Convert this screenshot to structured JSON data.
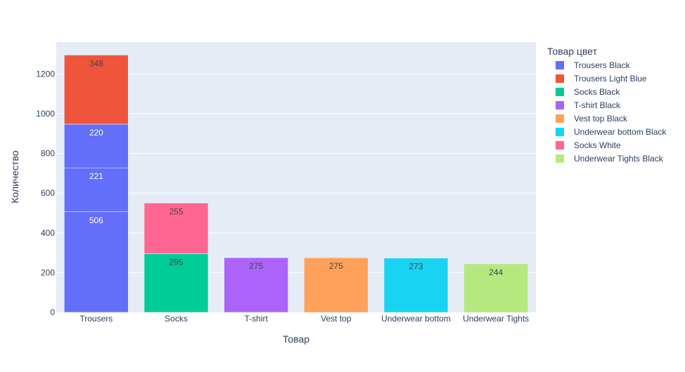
{
  "chart_data": {
    "type": "bar",
    "barmode": "stack",
    "xlabel": "Товар",
    "ylabel": "Количество",
    "categories": [
      "Trousers",
      "Socks",
      "T-shirt",
      "Vest top",
      "Underwear bottom",
      "Underwear Tights"
    ],
    "ylim": [
      0,
      1360
    ],
    "yticks": [
      0,
      200,
      400,
      600,
      800,
      1000,
      1200
    ],
    "grid": true,
    "legend": {
      "title": "Товар цвет",
      "placement": "right",
      "items": [
        {
          "name": "Trousers Black",
          "color": "#636efa"
        },
        {
          "name": "Trousers Light Blue",
          "color": "#ef553b"
        },
        {
          "name": "Socks Black",
          "color": "#00cc96"
        },
        {
          "name": "T-shirt Black",
          "color": "#ab63fa"
        },
        {
          "name": "Vest top Black",
          "color": "#ffa15a"
        },
        {
          "name": "Underwear bottom Black",
          "color": "#19d3f3"
        },
        {
          "name": "Socks White",
          "color": "#ff6692"
        },
        {
          "name": "Underwear Tights Black",
          "color": "#b6e880"
        }
      ]
    },
    "segments": [
      {
        "category": "Trousers",
        "series": "Trousers Black",
        "value": 506,
        "label": "506",
        "color": "#636efa",
        "label_color": "#ffffff"
      },
      {
        "category": "Trousers",
        "series": "Trousers Black",
        "value": 221,
        "label": "221",
        "color": "#636efa",
        "label_color": "#ffffff"
      },
      {
        "category": "Trousers",
        "series": "Trousers Black",
        "value": 220,
        "label": "220",
        "color": "#636efa",
        "label_color": "#ffffff"
      },
      {
        "category": "Trousers",
        "series": "Trousers Light Blue",
        "value": 348,
        "label": "348",
        "color": "#ef553b",
        "label_color": "#444444"
      },
      {
        "category": "Socks",
        "series": "Socks Black",
        "value": 295,
        "label": "295",
        "color": "#00cc96",
        "label_color": "#444444"
      },
      {
        "category": "Socks",
        "series": "Socks White",
        "value": 255,
        "label": "255",
        "color": "#ff6692",
        "label_color": "#444444"
      },
      {
        "category": "T-shirt",
        "series": "T-shirt Black",
        "value": 275,
        "label": "275",
        "color": "#ab63fa",
        "label_color": "#444444"
      },
      {
        "category": "Vest top",
        "series": "Vest top Black",
        "value": 275,
        "label": "275",
        "color": "#ffa15a",
        "label_color": "#444444"
      },
      {
        "category": "Underwear bottom",
        "series": "Underwear bottom Black",
        "value": 273,
        "label": "273",
        "color": "#19d3f3",
        "label_color": "#444444"
      },
      {
        "category": "Underwear Tights",
        "series": "Underwear Tights Black",
        "value": 244,
        "label": "244",
        "color": "#b6e880",
        "label_color": "#444444"
      }
    ],
    "colors": {
      "plot_background": "#e5ecf6",
      "gridline": "#ffffff",
      "axis_text": "#2a3f5f"
    }
  }
}
